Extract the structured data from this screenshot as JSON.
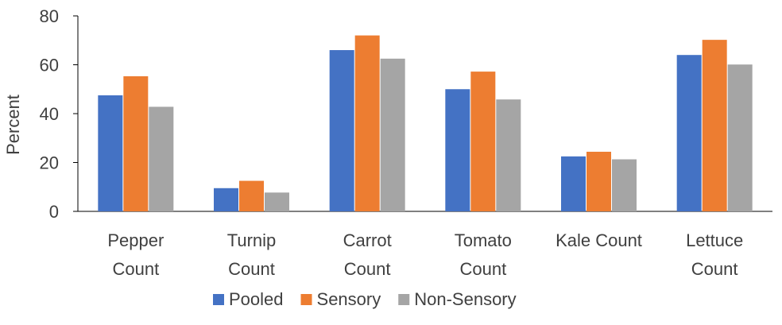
{
  "chart_data": {
    "type": "bar",
    "title": "",
    "xlabel": "",
    "ylabel": "Percent",
    "ylim": [
      0,
      80
    ],
    "yticks": [
      0,
      20,
      40,
      60,
      80
    ],
    "categories": [
      [
        "Pepper",
        "Count"
      ],
      [
        "Turnip",
        "Count"
      ],
      [
        "Carrot",
        "Count"
      ],
      [
        "Tomato",
        "Count"
      ],
      [
        "Kale Count"
      ],
      [
        "Lettuce",
        "Count"
      ]
    ],
    "series": [
      {
        "name": "Pooled",
        "color": "#4472C4",
        "values": [
          47.5,
          9.5,
          66,
          50,
          22.5,
          64
        ]
      },
      {
        "name": "Sensory",
        "color": "#ED7D31",
        "values": [
          55.3,
          12.5,
          72,
          57.2,
          24.4,
          70.2
        ]
      },
      {
        "name": "Non-Sensory",
        "color": "#A5A5A5",
        "values": [
          42.8,
          7.7,
          62.5,
          45.8,
          21.3,
          60.1
        ]
      }
    ],
    "grid": false,
    "legend": "bottom"
  }
}
